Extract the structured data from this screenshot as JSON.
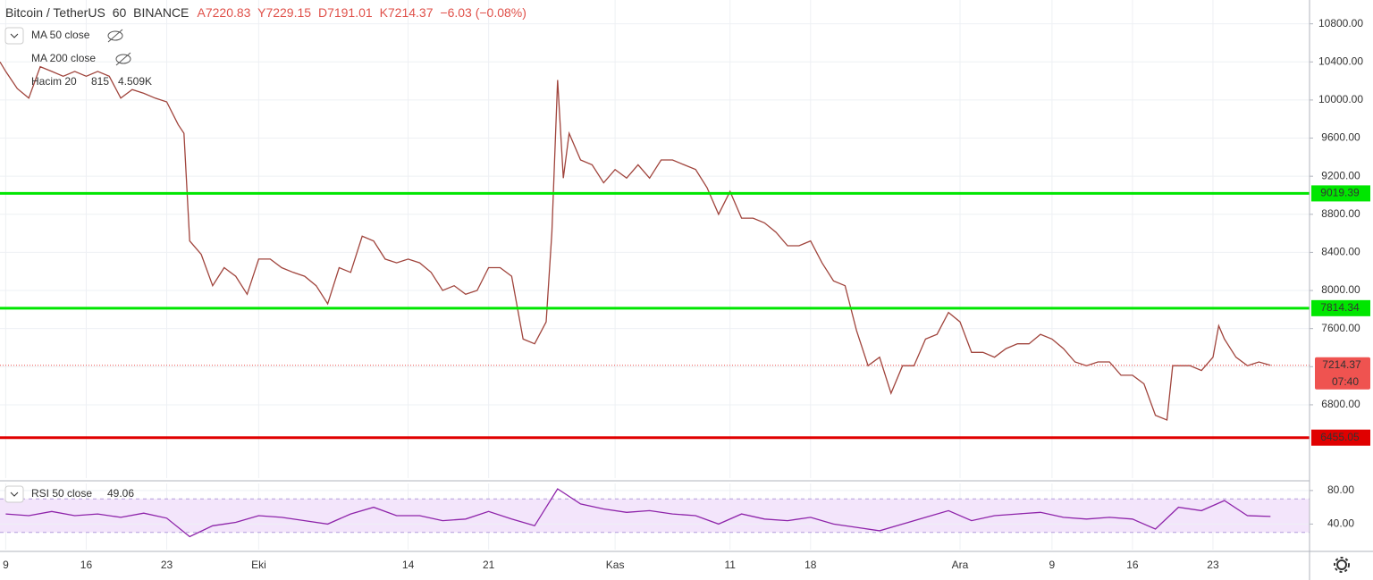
{
  "header": {
    "symbol": "Bitcoin / TetherUS",
    "interval": "60",
    "exchange": "BINANCE",
    "open": "A7220.83",
    "high": "Y7229.15",
    "low": "D7191.01",
    "close": "K7214.37",
    "change": "−6.03 (−0.08%)"
  },
  "indicators": [
    {
      "name": "MA 50 close"
    },
    {
      "name": "MA 200 close"
    },
    {
      "name": "Hacim 20",
      "value": "815",
      "average": "4.509K"
    }
  ],
  "chart_data": [
    {
      "type": "line",
      "color": "#a0443c",
      "x": [
        -0.5,
        0,
        1,
        2,
        3,
        4,
        5,
        6,
        7,
        8,
        9,
        10,
        11,
        12,
        13,
        14,
        15,
        15.5,
        16,
        17,
        18,
        19,
        20,
        21,
        22,
        23,
        24,
        25,
        26,
        27,
        28,
        29,
        30,
        31,
        32,
        33,
        34,
        35,
        36,
        37,
        38,
        39,
        40,
        41,
        42,
        43,
        44,
        45,
        46,
        47,
        47.5,
        48,
        48.5,
        49,
        50,
        51,
        52,
        53,
        54,
        55,
        56,
        57,
        58,
        59,
        60,
        61,
        62,
        63,
        64,
        65,
        66,
        67,
        68,
        69,
        70,
        71,
        72,
        73,
        74,
        75,
        76,
        77,
        78,
        79,
        80,
        81,
        82,
        83,
        84,
        85,
        86,
        87,
        88,
        89,
        90,
        91,
        92,
        93,
        94,
        95,
        96,
        97,
        98,
        99,
        100,
        101,
        101.5,
        102,
        103,
        104,
        105,
        105.5,
        106,
        107,
        108,
        109,
        110
      ],
      "values": [
        10400,
        10300,
        10120,
        10020,
        10350,
        10300,
        10250,
        10300,
        10250,
        10300,
        10250,
        10020,
        10110,
        10070,
        10020,
        9980,
        9740,
        9650,
        8520,
        8380,
        8050,
        8240,
        8150,
        7960,
        8330,
        8330,
        8240,
        8190,
        8150,
        8050,
        7860,
        8240,
        8190,
        8570,
        8520,
        8330,
        8290,
        8330,
        8290,
        8190,
        8000,
        8050,
        7960,
        8000,
        8240,
        8240,
        8150,
        7490,
        7440,
        7670,
        8610,
        10210,
        9180,
        9650,
        9370,
        9320,
        9130,
        9270,
        9180,
        9320,
        9180,
        9370,
        9370,
        9320,
        9270,
        9080,
        8800,
        9040,
        8760,
        8760,
        8710,
        8610,
        8470,
        8470,
        8520,
        8290,
        8100,
        8050,
        7580,
        7210,
        7300,
        6920,
        7210,
        7210,
        7490,
        7540,
        7770,
        7670,
        7350,
        7350,
        7300,
        7390,
        7440,
        7440,
        7540,
        7490,
        7390,
        7250,
        7210,
        7250,
        7250,
        7110,
        7110,
        7020,
        6690,
        6640,
        7210,
        7210,
        7210,
        7160,
        7300,
        7630,
        7490,
        7300,
        7210,
        7250,
        7214.37
      ],
      "xlim": [
        -0.5,
        113.4
      ],
      "ylim": [
        6030,
        11050
      ],
      "xticks": [
        {
          "value": 0,
          "label": "9"
        },
        {
          "value": 7,
          "label": "16"
        },
        {
          "value": 14,
          "label": "23"
        },
        {
          "value": 22,
          "label": "Eki"
        },
        {
          "value": 35,
          "label": "14"
        },
        {
          "value": 42,
          "label": "21"
        },
        {
          "value": 53,
          "label": "Kas"
        },
        {
          "value": 63,
          "label": "11"
        },
        {
          "value": 70,
          "label": "18"
        },
        {
          "value": 83,
          "label": "Ara"
        },
        {
          "value": 91,
          "label": "9"
        },
        {
          "value": 98,
          "label": "16"
        },
        {
          "value": 105,
          "label": "23"
        }
      ],
      "yticks": [
        {
          "value": 10800,
          "label": "10800.00"
        },
        {
          "value": 10400,
          "label": "10400.00"
        },
        {
          "value": 10000,
          "label": "10000.00"
        },
        {
          "value": 9600,
          "label": "9600.00"
        },
        {
          "value": 9200,
          "label": "9200.00"
        },
        {
          "value": 8800,
          "label": "8800.00"
        },
        {
          "value": 8400,
          "label": "8400.00"
        },
        {
          "value": 8000,
          "label": "8000.00"
        },
        {
          "value": 7600,
          "label": "7600.00"
        },
        {
          "value": 7200,
          "label": "7200.00"
        },
        {
          "value": 6800,
          "label": "6800.00"
        }
      ],
      "grid": true,
      "hlines": [
        {
          "value": 9019.39,
          "color": "#00e600"
        },
        {
          "value": 7814.34,
          "color": "#00e600"
        },
        {
          "value": 6455.05,
          "color": "#e00000"
        }
      ],
      "last": {
        "value": 7214.37,
        "countdown": "07:40",
        "color": "#ef5350"
      }
    },
    {
      "type": "line",
      "title": "RSI 50 close",
      "last_label": "49.06",
      "color": "#8e24aa",
      "x": [
        0,
        2,
        4,
        6,
        8,
        10,
        12,
        14,
        16,
        18,
        20,
        22,
        24,
        26,
        28,
        30,
        32,
        34,
        36,
        38,
        40,
        42,
        44,
        46,
        48,
        50,
        52,
        54,
        56,
        58,
        60,
        62,
        64,
        66,
        68,
        70,
        72,
        74,
        76,
        78,
        80,
        82,
        84,
        86,
        88,
        90,
        92,
        94,
        96,
        98,
        100,
        102,
        104,
        106,
        108,
        110
      ],
      "values": [
        52,
        50,
        55,
        50,
        52,
        48,
        53,
        47,
        25,
        38,
        42,
        50,
        48,
        44,
        40,
        52,
        60,
        50,
        50,
        44,
        46,
        55,
        46,
        38,
        82,
        64,
        58,
        54,
        56,
        52,
        50,
        40,
        52,
        46,
        44,
        48,
        40,
        36,
        32,
        40,
        48,
        56,
        44,
        50,
        52,
        54,
        48,
        46,
        48,
        46,
        34,
        60,
        56,
        68,
        50,
        49.06
      ],
      "xlim": [
        -0.5,
        113.4
      ],
      "ylim": [
        9.5,
        88.4
      ],
      "yticks": [
        {
          "value": 80,
          "label": "80.00"
        },
        {
          "value": 40,
          "label": "40.00"
        }
      ],
      "band": [
        30,
        70
      ],
      "grid": true
    }
  ]
}
